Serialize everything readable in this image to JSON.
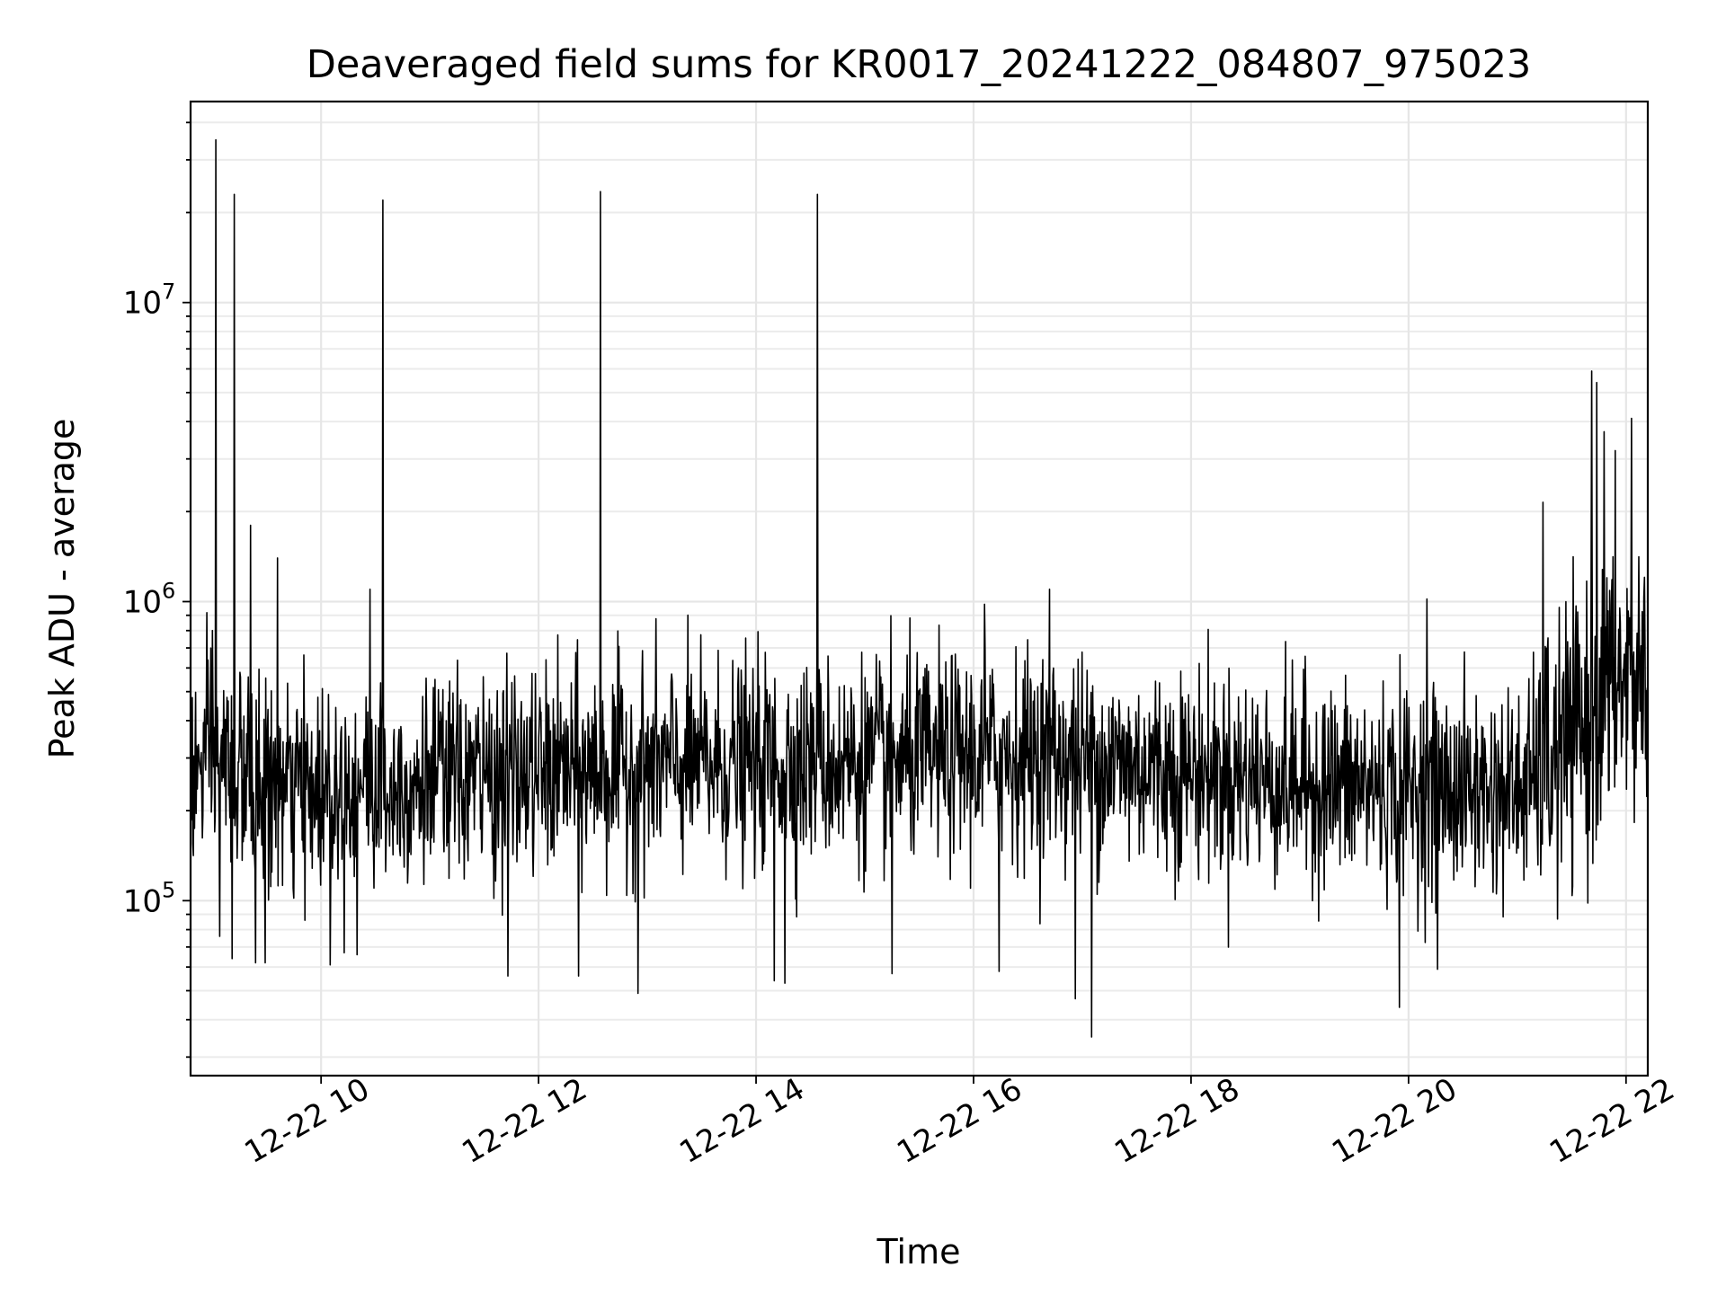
{
  "chart_data": {
    "type": "line",
    "title": "Deaveraged field sums for KR0017_20241222_084807_975023",
    "xlabel": "Time",
    "ylabel": "Peak ADU - average",
    "x_ticks": [
      "12-22 10",
      "12-22 12",
      "12-22 14",
      "12-22 16",
      "12-22 18",
      "12-22 20",
      "12-22 22"
    ],
    "x_tick_hours": [
      10,
      12,
      14,
      16,
      18,
      20,
      22
    ],
    "xlim": [
      "2024-12-22 08:48",
      "2024-12-22 22:12"
    ],
    "y_scale": "log",
    "y_ticks": [
      {
        "base": "10",
        "exp": "5",
        "value": 100000
      },
      {
        "base": "10",
        "exp": "6",
        "value": 1000000
      },
      {
        "base": "10",
        "exp": "7",
        "value": 10000000
      }
    ],
    "ylim": [
      26000,
      47000000
    ],
    "grid": true,
    "series": [
      {
        "color": "#000000",
        "baseline": [
          {
            "x": "2024-12-22 08:48",
            "y": 250000
          },
          {
            "x": "2024-12-22 09:00",
            "y": 300000
          },
          {
            "x": "2024-12-22 09:30",
            "y": 230000
          },
          {
            "x": "2024-12-22 11:00",
            "y": 250000
          },
          {
            "x": "2024-12-22 13:00",
            "y": 280000
          },
          {
            "x": "2024-12-22 15:00",
            "y": 290000
          },
          {
            "x": "2024-12-22 16:30",
            "y": 310000
          },
          {
            "x": "2024-12-22 18:00",
            "y": 270000
          },
          {
            "x": "2024-12-22 19:30",
            "y": 240000
          },
          {
            "x": "2024-12-22 21:00",
            "y": 230000
          },
          {
            "x": "2024-12-22 21:30",
            "y": 330000
          },
          {
            "x": "2024-12-22 21:50",
            "y": 500000
          },
          {
            "x": "2024-12-22 22:12",
            "y": 580000
          }
        ],
        "peaks": [
          {
            "x": "2024-12-22 09:00",
            "y": 800000
          },
          {
            "x": "2024-12-22 09:02",
            "y": 35000000
          },
          {
            "x": "2024-12-22 09:12",
            "y": 23000000
          },
          {
            "x": "2024-12-22 09:21",
            "y": 1800000
          },
          {
            "x": "2024-12-22 09:36",
            "y": 1400000
          },
          {
            "x": "2024-12-22 10:27",
            "y": 1100000
          },
          {
            "x": "2024-12-22 10:34",
            "y": 22000000
          },
          {
            "x": "2024-12-22 12:34",
            "y": 23500000
          },
          {
            "x": "2024-12-22 14:34",
            "y": 23000000
          },
          {
            "x": "2024-12-22 16:06",
            "y": 980000
          },
          {
            "x": "2024-12-22 16:42",
            "y": 1100000
          },
          {
            "x": "2024-12-22 20:10",
            "y": 1020000
          },
          {
            "x": "2024-12-22 21:14",
            "y": 2150000
          },
          {
            "x": "2024-12-22 21:41",
            "y": 5900000
          },
          {
            "x": "2024-12-22 21:44",
            "y": 5400000
          },
          {
            "x": "2024-12-22 21:48",
            "y": 3700000
          },
          {
            "x": "2024-12-22 21:54",
            "y": 3200000
          },
          {
            "x": "2024-12-22 22:03",
            "y": 4100000
          }
        ],
        "dips": [
          {
            "x": "2024-12-22 09:04",
            "y": 76000
          },
          {
            "x": "2024-12-22 09:11",
            "y": 64000
          },
          {
            "x": "2024-12-22 09:24",
            "y": 62000
          },
          {
            "x": "2024-12-22 09:29",
            "y": 62000
          },
          {
            "x": "2024-12-22 10:05",
            "y": 61000
          },
          {
            "x": "2024-12-22 10:20",
            "y": 66000
          },
          {
            "x": "2024-12-22 11:43",
            "y": 56000
          },
          {
            "x": "2024-12-22 12:22",
            "y": 56000
          },
          {
            "x": "2024-12-22 12:55",
            "y": 49000
          },
          {
            "x": "2024-12-22 14:10",
            "y": 54000
          },
          {
            "x": "2024-12-22 14:16",
            "y": 53000
          },
          {
            "x": "2024-12-22 15:15",
            "y": 57000
          },
          {
            "x": "2024-12-22 16:14",
            "y": 58000
          },
          {
            "x": "2024-12-22 16:56",
            "y": 47000
          },
          {
            "x": "2024-12-22 17:05",
            "y": 35000
          },
          {
            "x": "2024-12-22 19:55",
            "y": 44000
          },
          {
            "x": "2024-12-22 20:16",
            "y": 59000
          }
        ]
      }
    ]
  }
}
